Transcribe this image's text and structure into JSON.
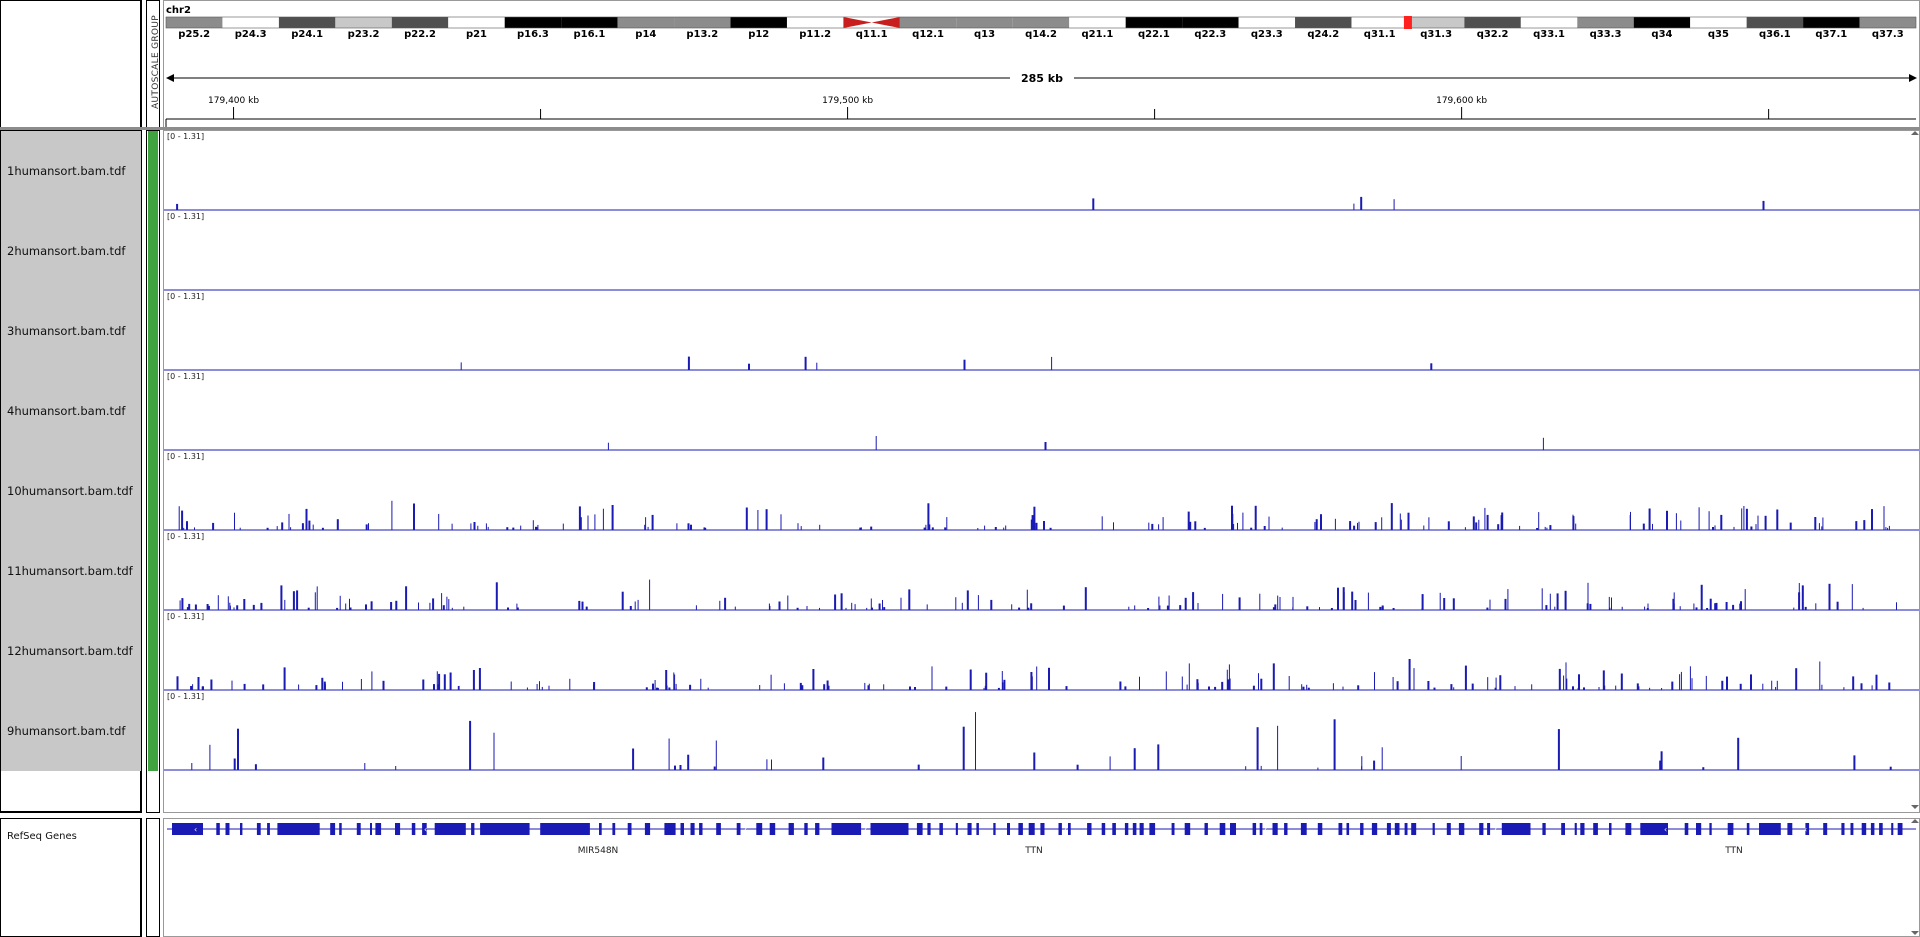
{
  "header": {
    "chromosome": "chr2",
    "attribute_label": "AUTOSCALE GROUP",
    "span_label": "285 kb",
    "ruler_ticks": [
      {
        "label": "179,400 kb",
        "pos": 179400
      },
      {
        "label": "179,500 kb",
        "pos": 179500
      },
      {
        "label": "179,600 kb",
        "pos": 179600
      }
    ],
    "minor_ticks": [
      179450,
      179550,
      179650
    ],
    "view_start_kb": 179389,
    "view_end_kb": 179674
  },
  "ideogram": {
    "bands": [
      {
        "name": "p25.2",
        "stain": "gpos50",
        "show": true
      },
      {
        "name": "p24.3",
        "stain": "gneg",
        "show": true
      },
      {
        "name": "p24.1",
        "stain": "gpos75",
        "show": true
      },
      {
        "name": "p23.2",
        "stain": "gpos25",
        "show": true
      },
      {
        "name": "p22.2",
        "stain": "gpos75",
        "show": true
      },
      {
        "name": "p21",
        "stain": "gneg",
        "show": true
      },
      {
        "name": "p16.3",
        "stain": "gpos100",
        "show": true
      },
      {
        "name": "p16.1",
        "stain": "gpos100",
        "show": true
      },
      {
        "name": "p14",
        "stain": "gpos50",
        "show": true
      },
      {
        "name": "p13.2",
        "stain": "gpos50",
        "show": true
      },
      {
        "name": "p12",
        "stain": "gpos100",
        "show": true
      },
      {
        "name": "p11.2",
        "stain": "gneg",
        "show": true
      },
      {
        "name": "q11.1",
        "stain": "acen",
        "show": true
      },
      {
        "name": "q12.1",
        "stain": "gpos50",
        "show": true
      },
      {
        "name": "q13",
        "stain": "gpos50",
        "show": true
      },
      {
        "name": "q14.2",
        "stain": "gpos50",
        "show": true
      },
      {
        "name": "q21.1",
        "stain": "gneg",
        "show": true
      },
      {
        "name": "q22.1",
        "stain": "gpos100",
        "show": true
      },
      {
        "name": "q22.3",
        "stain": "gpos100",
        "show": true
      },
      {
        "name": "q23.3",
        "stain": "gneg",
        "show": true
      },
      {
        "name": "q24.2",
        "stain": "gpos75",
        "show": true
      },
      {
        "name": "q31.1",
        "stain": "gneg",
        "show": true
      },
      {
        "name": "q31.3",
        "stain": "gpos25",
        "show": true
      },
      {
        "name": "q32.2",
        "stain": "gpos75",
        "show": true
      },
      {
        "name": "q33.1",
        "stain": "gneg",
        "show": true
      },
      {
        "name": "q33.3",
        "stain": "gpos50",
        "show": true
      },
      {
        "name": "q34",
        "stain": "gpos100",
        "show": true
      },
      {
        "name": "q35",
        "stain": "gneg",
        "show": true
      },
      {
        "name": "q36.1",
        "stain": "gpos75",
        "show": true
      },
      {
        "name": "q37.1",
        "stain": "gpos100",
        "show": true
      },
      {
        "name": "q37.3",
        "stain": "gpos50",
        "show": true
      }
    ],
    "current_region_color": "#ff2020"
  },
  "tracks": [
    {
      "name": "1humansort.bam.tdf",
      "range": "[0 - 1.31]"
    },
    {
      "name": "2humansort.bam.tdf",
      "range": "[0 - 1.31]"
    },
    {
      "name": "3humansort.bam.tdf",
      "range": "[0 - 1.31]"
    },
    {
      "name": "4humansort.bam.tdf",
      "range": "[0 - 1.31]"
    },
    {
      "name": "10humansort.bam.tdf",
      "range": "[0 - 1.31]"
    },
    {
      "name": "11humansort.bam.tdf",
      "range": "[0 - 1.31]"
    },
    {
      "name": "12humansort.bam.tdf",
      "range": "[0 - 1.31]"
    },
    {
      "name": "9humansort.bam.tdf",
      "range": "[0 - 1.31]"
    }
  ],
  "feature_track": {
    "name": "RefSeq Genes",
    "gene_labels": [
      {
        "label": "MIR548N",
        "pos": 179520
      },
      {
        "label": "TTN",
        "pos": 179630
      },
      {
        "label": "TTN",
        "pos": 179827
      }
    ]
  },
  "colors": {
    "data": "#1a1ab4",
    "attribute": "#3fa33f",
    "name_bg": "#c8c8c8",
    "gene": "#1a1ab4"
  }
}
